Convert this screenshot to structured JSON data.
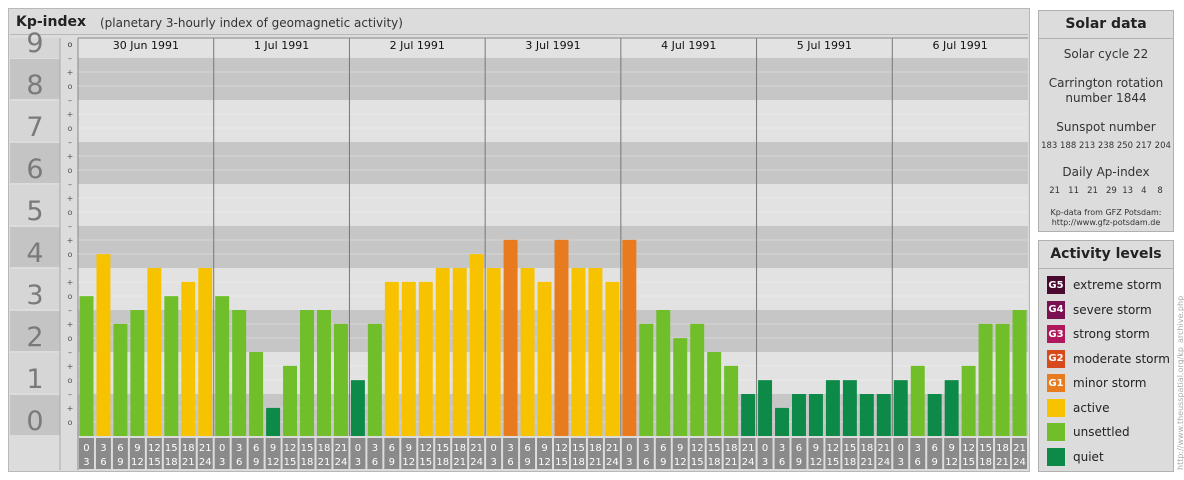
{
  "title": "Kp-index",
  "subtitle": "(planetary 3-hourly index of geomagnetic activity)",
  "chart_data": {
    "type": "bar",
    "ylabel_levels": [
      "0",
      "1",
      "2",
      "3",
      "4",
      "5",
      "6",
      "7",
      "8",
      "9"
    ],
    "minor_ticks": [
      "+",
      "o",
      "-"
    ],
    "ylim": [
      0,
      9.33
    ],
    "days": [
      "30 Jun 1991",
      "1 Jul 1991",
      "2 Jul 1991",
      "3 Jul 1991",
      "4 Jul 1991",
      "5 Jul 1991",
      "6 Jul 1991"
    ],
    "interval_top": [
      "0",
      "3",
      "6",
      "9",
      "12",
      "15",
      "18",
      "21"
    ],
    "interval_bottom": [
      "3",
      "6",
      "9",
      "12",
      "15",
      "18",
      "21",
      "24"
    ],
    "values": [
      3.33,
      4.33,
      2.67,
      3.0,
      4.0,
      3.33,
      3.67,
      4.0,
      3.33,
      3.0,
      2.0,
      0.67,
      1.67,
      3.0,
      3.0,
      2.67,
      1.33,
      2.67,
      3.67,
      3.67,
      3.67,
      4.0,
      4.0,
      4.33,
      4.0,
      4.67,
      4.0,
      3.67,
      4.67,
      4.0,
      4.0,
      3.67,
      4.67,
      2.67,
      3.0,
      2.33,
      2.67,
      2.0,
      1.67,
      1.0,
      1.33,
      0.67,
      1.0,
      1.0,
      1.33,
      1.33,
      1.0,
      1.0,
      1.33,
      1.67,
      1.0,
      1.33,
      1.67,
      2.67,
      2.67,
      3.0
    ],
    "colors": {
      "quiet": "#0e8a48",
      "unsettled": "#6fbe2a",
      "active": "#f7c300",
      "minor_storm": "#e87b1e",
      "moderate_storm": "#d64a1c",
      "strong_storm": "#b0185c",
      "severe_storm": "#7a1050",
      "extreme_storm": "#4a0a30",
      "band_dark": "#c6c6c6",
      "band_light": "#e2e2e2",
      "label_gray": "#7a7a7a"
    }
  },
  "solar": {
    "heading": "Solar data",
    "cycle": "Solar cycle 22",
    "carrington_1": "Carrington rotation",
    "carrington_2": "number 1844",
    "sunspot_label": "Sunspot number",
    "sunspot_values": "183 188 213 238 250 217 204",
    "ap_label": "Daily Ap-index",
    "ap_values": "21   11   21   29  13   4    8",
    "source_1": "Kp-data from GFZ Potsdam:",
    "source_2": "http://www.gfz-potsdam.de"
  },
  "levels": {
    "heading": "Activity levels",
    "items": [
      {
        "badge": "G5",
        "label": "extreme storm",
        "color": "#4a0a30"
      },
      {
        "badge": "G4",
        "label": "severe storm",
        "color": "#7a1050"
      },
      {
        "badge": "G3",
        "label": "strong storm",
        "color": "#b0185c"
      },
      {
        "badge": "G2",
        "label": "moderate storm",
        "color": "#d64a1c"
      },
      {
        "badge": "G1",
        "label": "minor storm",
        "color": "#e87b1e"
      },
      {
        "badge": "",
        "label": "active",
        "color": "#f7c300"
      },
      {
        "badge": "",
        "label": "unsettled",
        "color": "#6fbe2a"
      },
      {
        "badge": "",
        "label": "quiet",
        "color": "#0e8a48"
      }
    ]
  },
  "credit": "http://www.theusspatial.org/kp_archive.php"
}
